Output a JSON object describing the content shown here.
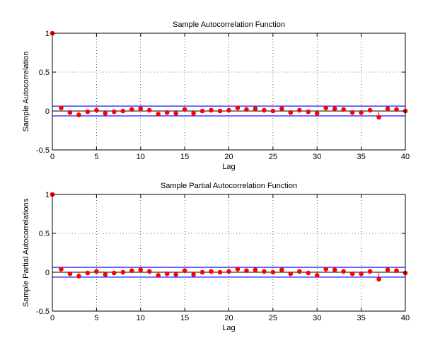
{
  "chart_data": [
    {
      "type": "stem",
      "title": "Sample Autocorrelation Function",
      "xlabel": "Lag",
      "ylabel": "Sample Autocorrelation",
      "xlim": [
        0,
        40
      ],
      "ylim": [
        -0.5,
        1
      ],
      "xticks": [
        "0",
        "5",
        "10",
        "15",
        "20",
        "25",
        "30",
        "35",
        "40"
      ],
      "yticks": [
        "-0.5",
        "0",
        "0.5",
        "1"
      ],
      "grid": true,
      "confidence_bounds": [
        0.063,
        -0.063
      ],
      "x": [
        0,
        1,
        2,
        3,
        4,
        5,
        6,
        7,
        8,
        9,
        10,
        11,
        12,
        13,
        14,
        15,
        16,
        17,
        18,
        19,
        20,
        21,
        22,
        23,
        24,
        25,
        26,
        27,
        28,
        29,
        30,
        31,
        32,
        33,
        34,
        35,
        36,
        37,
        38,
        39,
        40
      ],
      "values": [
        1,
        0.04,
        -0.02,
        -0.05,
        -0.01,
        0.01,
        -0.03,
        -0.01,
        0.0,
        0.02,
        0.03,
        0.01,
        -0.04,
        -0.02,
        -0.03,
        0.02,
        -0.03,
        0.0,
        0.01,
        0.0,
        0.01,
        0.04,
        0.02,
        0.03,
        0.01,
        0.0,
        0.03,
        -0.02,
        0.01,
        -0.01,
        -0.03,
        0.04,
        0.03,
        0.02,
        -0.02,
        -0.02,
        0.01,
        -0.08,
        0.03,
        0.02,
        0.0
      ],
      "colors": {
        "stem": "#ff0000",
        "bounds": "#0000ff",
        "zero": "#000000"
      }
    },
    {
      "type": "stem",
      "title": "Sample Partial Autocorrelation Function",
      "xlabel": "Lag",
      "ylabel": "Sample Partial Autocorrelations",
      "xlim": [
        0,
        40
      ],
      "ylim": [
        -0.5,
        1
      ],
      "xticks": [
        "0",
        "5",
        "10",
        "15",
        "20",
        "25",
        "30",
        "35",
        "40"
      ],
      "yticks": [
        "-0.5",
        "0",
        "0.5",
        "1"
      ],
      "grid": true,
      "confidence_bounds": [
        0.063,
        -0.063
      ],
      "x": [
        0,
        1,
        2,
        3,
        4,
        5,
        6,
        7,
        8,
        9,
        10,
        11,
        12,
        13,
        14,
        15,
        16,
        17,
        18,
        19,
        20,
        21,
        22,
        23,
        24,
        25,
        26,
        27,
        28,
        29,
        30,
        31,
        32,
        33,
        34,
        35,
        36,
        37,
        38,
        39,
        40
      ],
      "values": [
        1,
        0.04,
        -0.02,
        -0.05,
        -0.01,
        0.01,
        -0.03,
        -0.01,
        0.0,
        0.02,
        0.03,
        0.01,
        -0.04,
        -0.02,
        -0.03,
        0.02,
        -0.03,
        0.0,
        0.01,
        0.0,
        0.01,
        0.04,
        0.02,
        0.03,
        0.01,
        0.0,
        0.03,
        -0.02,
        0.01,
        -0.01,
        -0.04,
        0.04,
        0.03,
        0.01,
        -0.02,
        -0.02,
        0.01,
        -0.09,
        0.03,
        0.02,
        -0.01
      ],
      "colors": {
        "stem": "#ff0000",
        "bounds": "#0000ff",
        "zero": "#000000"
      }
    }
  ]
}
